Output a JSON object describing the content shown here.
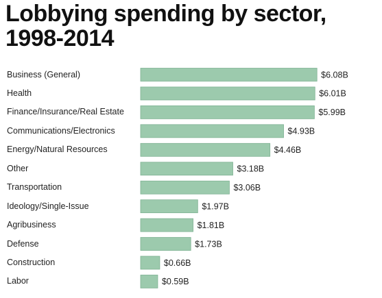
{
  "chart_data": {
    "type": "bar",
    "orientation": "horizontal",
    "title": "Lobbying spending by sector, 1998-2014",
    "categories": [
      "Business (General)",
      "Health",
      "Finance/Insurance/Real Estate",
      "Communications/Electronics",
      "Energy/Natural Resources",
      "Other",
      "Transportation",
      "Ideology/Single-Issue",
      "Agribusiness",
      "Defense",
      "Construction",
      "Labor"
    ],
    "values": [
      6.08,
      6.01,
      5.99,
      4.93,
      4.46,
      3.18,
      3.06,
      1.97,
      1.81,
      1.73,
      0.66,
      0.59
    ],
    "value_labels": [
      "$6.08B",
      "$6.01B",
      "$5.99B",
      "$4.93B",
      "$4.46B",
      "$3.18B",
      "$3.06B",
      "$1.97B",
      "$1.81B",
      "$1.73B",
      "$0.66B",
      "$0.59B"
    ],
    "color": "#9ccaad"
  }
}
